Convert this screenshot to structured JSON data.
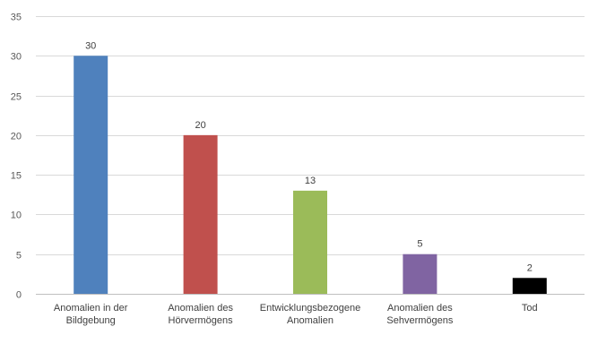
{
  "chart_data": {
    "type": "bar",
    "categories": [
      [
        "Anomalien in der",
        "Bildgebung"
      ],
      [
        "Anomalien des",
        "Hörvermögens"
      ],
      [
        "Entwicklungsbezogene",
        "Anomalien"
      ],
      [
        "Anomalien des",
        "Sehvermögens"
      ],
      [
        "Tod"
      ]
    ],
    "values": [
      30,
      20,
      13,
      5,
      2
    ],
    "data_labels": [
      "30",
      "20",
      "13",
      "5",
      "2"
    ],
    "colors": [
      "#4f81bd",
      "#c0504d",
      "#9bbb59",
      "#8064a2",
      "#000000"
    ],
    "ylim": [
      0,
      35
    ],
    "yticks": [
      0,
      5,
      10,
      15,
      20,
      25,
      30,
      35
    ],
    "grid": true,
    "legend": "none"
  }
}
